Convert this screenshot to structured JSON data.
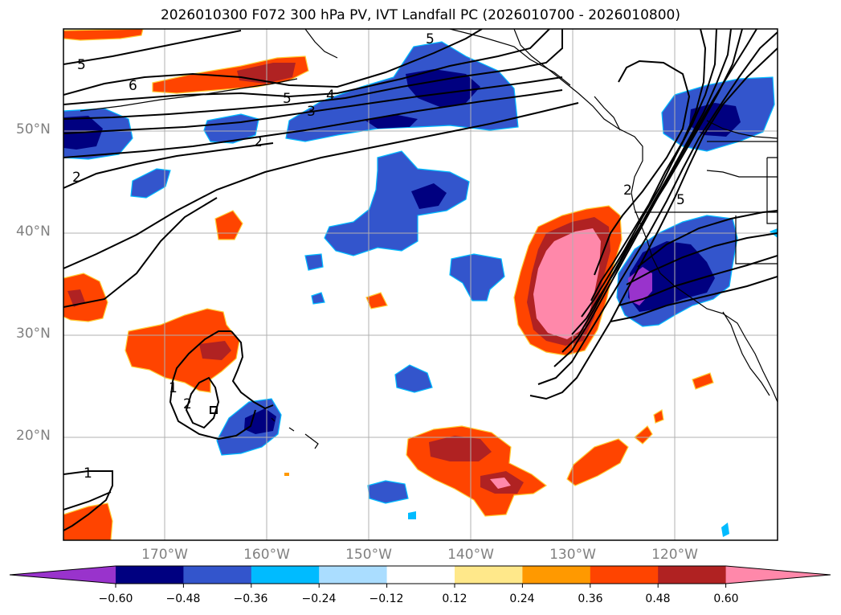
{
  "title": "2026010300 F072 300 hPa PV, IVT Landfall PC (2026010700 - 2026010800)",
  "map": {
    "lat_labels": [
      "50°N",
      "40°N",
      "30°N",
      "20°N"
    ],
    "lon_labels": [
      "170°W",
      "160°W",
      "150°W",
      "140°W",
      "130°W",
      "120°W"
    ],
    "contour_labels": [
      "5",
      "6",
      "5",
      "4",
      "3",
      "2",
      "2",
      "5",
      "2",
      "1",
      "2",
      "1",
      "5"
    ]
  },
  "colorbar": {
    "ticks": [
      "−0.60",
      "−0.48",
      "−0.36",
      "−0.24",
      "−0.12",
      "0.12",
      "0.24",
      "0.36",
      "0.48",
      "0.60"
    ],
    "colors": [
      "#9933cc",
      "#000080",
      "#3355cc",
      "#00bbff",
      "#aaddff",
      "#ffffff",
      "#ffe88a",
      "#ff9900",
      "#ff4400",
      "#b02222",
      "#ff88aa"
    ]
  },
  "colors": {
    "grid": "#b0b0b0",
    "coast": "#000000",
    "contour": "#000000"
  }
}
